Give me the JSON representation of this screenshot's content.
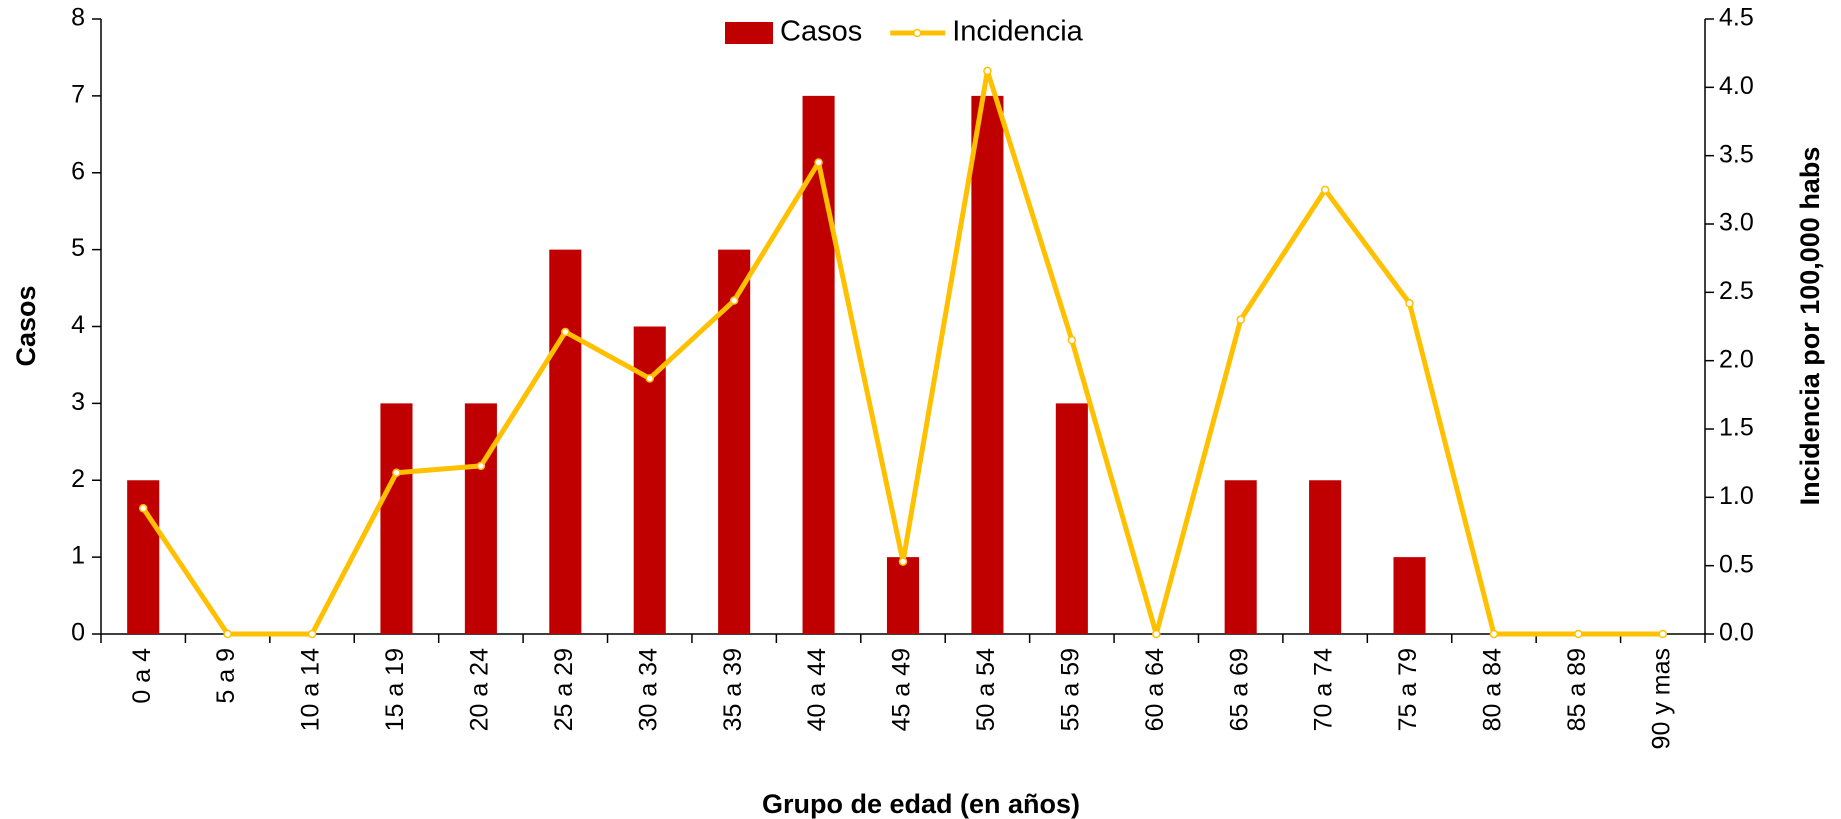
{
  "chart_data": {
    "type": "bar-line",
    "x_label": "Grupo de edad (en años)",
    "y_label": "Casos",
    "y2_label": "Incidencia por 100,000 habs",
    "categories": [
      "0 a 4",
      "5 a 9",
      "10 a 14",
      "15 a 19",
      "20 a 24",
      "25 a 29",
      "30 a 34",
      "35 a 39",
      "40 a 44",
      "45 a 49",
      "50 a 54",
      "55 a 59",
      "60 a 64",
      "65 a 69",
      "70 a 74",
      "75 a 79",
      "80 a 84",
      "85 a 89",
      "90 y mas"
    ],
    "series": [
      {
        "name": "Casos",
        "type": "bar",
        "color": "#c00000",
        "values": [
          2,
          0,
          0,
          3,
          3,
          5,
          4,
          5,
          7,
          1,
          7,
          3,
          0,
          2,
          2,
          1,
          0,
          0,
          0
        ]
      },
      {
        "name": "Incidencia",
        "type": "line",
        "axis": "y2",
        "color": "#ffc000",
        "values": [
          0.92,
          0,
          0,
          1.18,
          1.23,
          2.21,
          1.87,
          2.44,
          3.45,
          0.53,
          4.12,
          2.15,
          0,
          2.3,
          3.25,
          2.42,
          0,
          0,
          0
        ]
      }
    ],
    "ylim": [
      0,
      8
    ],
    "yticks": [
      0,
      1,
      2,
      3,
      4,
      5,
      6,
      7,
      8
    ],
    "y2lim": [
      0,
      4.5
    ],
    "y2ticks": [
      {
        "value": 0,
        "label": "0.0"
      },
      0.5,
      {
        "value": 1,
        "label": "1.0"
      },
      1.5,
      {
        "value": 2,
        "label": "2.0"
      },
      2.5,
      {
        "value": 3,
        "label": "3.0"
      },
      3.5,
      {
        "value": 4,
        "label": "4.0"
      },
      4.5
    ],
    "legend": "top"
  }
}
